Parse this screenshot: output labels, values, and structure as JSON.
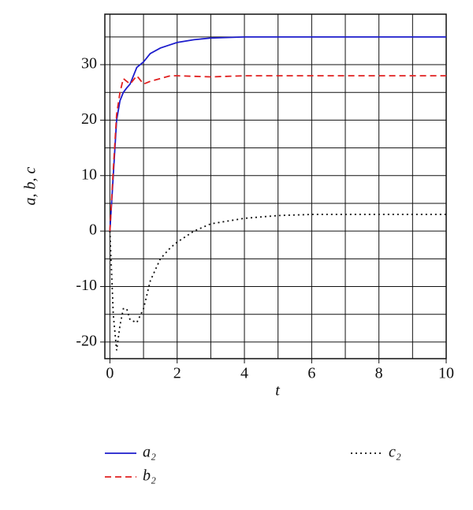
{
  "chart_data": {
    "type": "line",
    "xlabel": "t",
    "ylabel": "a, b, c",
    "xlim": [
      -0.15,
      10
    ],
    "ylim": [
      -23,
      39.1
    ],
    "xticks": [
      0,
      2,
      4,
      6,
      8,
      10
    ],
    "yticks": [
      -20,
      -10,
      0,
      10,
      20,
      30
    ],
    "xminorticks": [
      1,
      3,
      5,
      7,
      9
    ],
    "yminorticks": [
      -15,
      -5,
      5,
      15,
      25,
      35
    ],
    "grid": true,
    "x": [
      0,
      0.1,
      0.2,
      0.3,
      0.4,
      0.5,
      0.6,
      0.8,
      1,
      1.2,
      1.5,
      1.8,
      2,
      2.5,
      3,
      4,
      5,
      6,
      8,
      10
    ],
    "series": [
      {
        "name": "a₂",
        "color": "#1c1ccc",
        "style": "solid",
        "values": [
          0,
          10,
          20,
          23.5,
          25,
          25.8,
          26.5,
          29.5,
          30.5,
          32,
          33,
          33.6,
          34,
          34.5,
          34.8,
          35,
          35,
          35,
          35,
          35
        ]
      },
      {
        "name": "b₂",
        "color": "#e02020",
        "style": "dashed",
        "values": [
          0,
          11,
          21,
          25,
          27.5,
          27,
          26.5,
          28,
          26.5,
          27,
          27.5,
          28,
          28,
          27.9,
          27.8,
          28,
          28,
          28,
          28,
          28
        ]
      },
      {
        "name": "c₂",
        "color": "#111111",
        "style": "dotted",
        "values": [
          0,
          -15,
          -21.5,
          -17,
          -14,
          -14,
          -16,
          -16.5,
          -14,
          -9,
          -5,
          -3,
          -2,
          0,
          1.3,
          2.3,
          2.8,
          3,
          3,
          3
        ]
      }
    ]
  }
}
